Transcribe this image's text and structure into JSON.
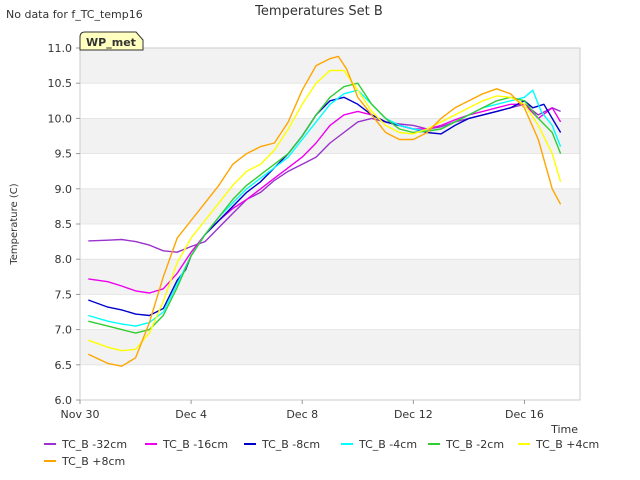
{
  "note": "No data for f_TC_temp16",
  "chart_data": {
    "type": "line",
    "title": "Temperatures Set B",
    "xlabel": "Time",
    "ylabel": "Temperature (C)",
    "badge": "WP_met",
    "x_unit": "days since Nov 30",
    "xlim": [
      0,
      18
    ],
    "ylim": [
      6.0,
      11.0
    ],
    "x_ticks": [
      {
        "value": 0,
        "label": "Nov 30"
      },
      {
        "value": 4,
        "label": "Dec 4"
      },
      {
        "value": 8,
        "label": "Dec 8"
      },
      {
        "value": 12,
        "label": "Dec 12"
      },
      {
        "value": 16,
        "label": "Dec 16"
      }
    ],
    "y_ticks": [
      6.0,
      6.5,
      7.0,
      7.5,
      8.0,
      8.5,
      9.0,
      9.5,
      10.0,
      10.5,
      11.0
    ],
    "grid": "alternating horizontal bands",
    "legend_position": "bottom",
    "series": [
      {
        "name": "TC_B -32cm",
        "color": "#9a32cd",
        "x": [
          0.3,
          1.0,
          1.5,
          2.0,
          2.5,
          3.0,
          3.5,
          4.0,
          4.5,
          5.0,
          5.5,
          6.0,
          6.5,
          7.0,
          7.5,
          8.0,
          8.5,
          9.0,
          9.5,
          10.0,
          10.5,
          11.0,
          11.5,
          12.0,
          12.5,
          13.0,
          13.5,
          14.0,
          14.5,
          15.0,
          15.5,
          16.0,
          16.5,
          17.0,
          17.3
        ],
        "y": [
          8.26,
          8.27,
          8.28,
          8.25,
          8.2,
          8.12,
          8.1,
          8.18,
          8.25,
          8.45,
          8.65,
          8.85,
          8.95,
          9.12,
          9.25,
          9.35,
          9.45,
          9.65,
          9.8,
          9.95,
          10.0,
          9.95,
          9.92,
          9.9,
          9.85,
          9.88,
          9.95,
          10.0,
          10.05,
          10.1,
          10.15,
          10.2,
          10.05,
          10.15,
          10.1
        ]
      },
      {
        "name": "TC_B -16cm",
        "color": "#ee00ee",
        "x": [
          0.3,
          1.0,
          1.5,
          2.0,
          2.5,
          3.0,
          3.5,
          4.0,
          4.5,
          5.0,
          5.5,
          6.0,
          6.5,
          7.0,
          7.5,
          8.0,
          8.5,
          9.0,
          9.5,
          10.0,
          10.5,
          11.0,
          11.5,
          12.0,
          12.5,
          13.0,
          13.5,
          14.0,
          14.5,
          15.0,
          15.5,
          16.0,
          16.5,
          17.0,
          17.3
        ],
        "y": [
          7.72,
          7.68,
          7.62,
          7.55,
          7.52,
          7.58,
          7.8,
          8.1,
          8.35,
          8.55,
          8.72,
          8.85,
          9.0,
          9.15,
          9.3,
          9.45,
          9.65,
          9.9,
          10.05,
          10.1,
          10.05,
          9.95,
          9.9,
          9.85,
          9.85,
          9.9,
          9.98,
          10.05,
          10.1,
          10.15,
          10.2,
          10.2,
          10.0,
          10.15,
          9.95
        ]
      },
      {
        "name": "TC_B -8cm",
        "color": "#0000cd",
        "x": [
          0.3,
          1.0,
          1.5,
          2.0,
          2.5,
          3.0,
          3.5,
          3.8,
          4.0,
          4.5,
          5.0,
          5.5,
          6.0,
          6.5,
          7.0,
          7.5,
          8.0,
          8.5,
          9.0,
          9.5,
          10.0,
          10.5,
          11.0,
          11.5,
          12.0,
          12.5,
          13.0,
          13.5,
          14.0,
          14.5,
          15.0,
          15.5,
          16.0,
          16.3,
          16.7,
          17.0,
          17.3
        ],
        "y": [
          7.42,
          7.32,
          7.28,
          7.22,
          7.2,
          7.3,
          7.7,
          7.85,
          8.05,
          8.35,
          8.55,
          8.75,
          8.95,
          9.1,
          9.3,
          9.5,
          9.75,
          10.05,
          10.25,
          10.3,
          10.2,
          10.05,
          9.95,
          9.9,
          9.85,
          9.8,
          9.78,
          9.9,
          10.0,
          10.05,
          10.1,
          10.15,
          10.25,
          10.15,
          10.2,
          10.0,
          9.8
        ]
      },
      {
        "name": "TC_B -4cm",
        "color": "#00ffff",
        "x": [
          0.3,
          1.0,
          1.5,
          2.0,
          2.5,
          3.0,
          3.5,
          4.0,
          4.5,
          5.0,
          5.5,
          6.0,
          6.5,
          7.0,
          7.5,
          8.0,
          8.5,
          9.0,
          9.5,
          10.0,
          10.5,
          11.0,
          11.5,
          12.0,
          12.5,
          13.0,
          13.5,
          14.0,
          14.5,
          15.0,
          15.5,
          16.0,
          16.3,
          16.6,
          17.0,
          17.3
        ],
        "y": [
          7.2,
          7.12,
          7.08,
          7.05,
          7.1,
          7.25,
          7.65,
          8.05,
          8.35,
          8.6,
          8.8,
          9.0,
          9.15,
          9.3,
          9.45,
          9.7,
          9.95,
          10.2,
          10.35,
          10.4,
          10.2,
          10.0,
          9.9,
          9.85,
          9.82,
          9.85,
          9.95,
          10.05,
          10.15,
          10.2,
          10.25,
          10.3,
          10.4,
          10.1,
          9.9,
          9.6
        ]
      },
      {
        "name": "TC_B -2cm",
        "color": "#32cd32",
        "x": [
          0.3,
          1.0,
          1.5,
          2.0,
          2.5,
          3.0,
          3.5,
          4.0,
          4.5,
          5.0,
          5.5,
          6.0,
          6.5,
          7.0,
          7.5,
          8.0,
          8.5,
          9.0,
          9.5,
          10.0,
          10.5,
          11.0,
          11.5,
          12.0,
          12.5,
          13.0,
          13.5,
          14.0,
          14.5,
          15.0,
          15.5,
          16.0,
          16.5,
          17.0,
          17.3
        ],
        "y": [
          7.12,
          7.05,
          7.0,
          6.95,
          7.0,
          7.2,
          7.6,
          8.05,
          8.35,
          8.6,
          8.85,
          9.05,
          9.2,
          9.35,
          9.5,
          9.75,
          10.05,
          10.3,
          10.45,
          10.5,
          10.2,
          10.0,
          9.85,
          9.8,
          9.82,
          9.85,
          9.95,
          10.05,
          10.15,
          10.25,
          10.3,
          10.25,
          10.0,
          9.8,
          9.5
        ]
      },
      {
        "name": "TC_B +4cm",
        "color": "#ffff00",
        "x": [
          0.3,
          1.0,
          1.5,
          2.0,
          2.5,
          3.0,
          3.5,
          4.0,
          4.5,
          5.0,
          5.5,
          6.0,
          6.5,
          7.0,
          7.5,
          8.0,
          8.5,
          9.0,
          9.5,
          10.0,
          10.5,
          11.0,
          11.5,
          12.0,
          12.5,
          13.0,
          13.5,
          14.0,
          14.5,
          15.0,
          15.5,
          16.0,
          16.5,
          17.0,
          17.3
        ],
        "y": [
          6.85,
          6.75,
          6.7,
          6.72,
          6.95,
          7.4,
          7.95,
          8.3,
          8.55,
          8.8,
          9.05,
          9.25,
          9.35,
          9.55,
          9.85,
          10.2,
          10.5,
          10.68,
          10.68,
          10.4,
          10.1,
          9.9,
          9.8,
          9.78,
          9.85,
          9.95,
          10.05,
          10.15,
          10.25,
          10.32,
          10.3,
          10.2,
          9.9,
          9.5,
          9.1
        ]
      },
      {
        "name": "TC_B +8cm",
        "color": "#ffa500",
        "x": [
          0.3,
          1.0,
          1.5,
          2.0,
          2.5,
          3.0,
          3.5,
          4.0,
          4.5,
          5.0,
          5.5,
          6.0,
          6.5,
          7.0,
          7.5,
          8.0,
          8.5,
          9.0,
          9.3,
          9.6,
          10.0,
          10.5,
          11.0,
          11.5,
          12.0,
          12.5,
          13.0,
          13.5,
          14.0,
          14.5,
          15.0,
          15.5,
          16.0,
          16.5,
          17.0,
          17.3
        ],
        "y": [
          6.65,
          6.52,
          6.48,
          6.6,
          7.1,
          7.75,
          8.3,
          8.55,
          8.8,
          9.05,
          9.35,
          9.5,
          9.6,
          9.65,
          9.95,
          10.4,
          10.75,
          10.85,
          10.88,
          10.7,
          10.3,
          10.05,
          9.8,
          9.7,
          9.7,
          9.8,
          10.0,
          10.15,
          10.25,
          10.35,
          10.42,
          10.35,
          10.15,
          9.7,
          9.0,
          8.78
        ]
      }
    ]
  }
}
